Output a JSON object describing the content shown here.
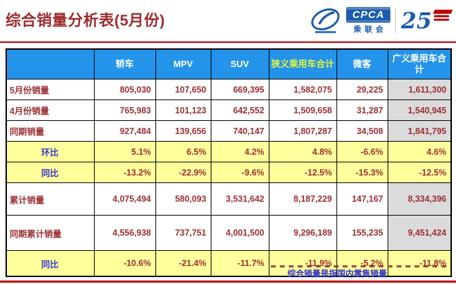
{
  "page": {
    "title": "综合销量分析表(5月份)",
    "footnote": "综合销量是指国内零售销量"
  },
  "logo": {
    "org_abbr": "CPCA",
    "org_name": "乘联会",
    "anniversary": "25"
  },
  "chart_data": {
    "type": "table",
    "columns": [
      "",
      "轿车",
      "MPV",
      "SUV",
      "狭义乘用车合计",
      "微客",
      "广义乘用车合计"
    ],
    "rows": [
      {
        "label": "5月份销量",
        "kind": "data",
        "values": [
          "805,030",
          "107,650",
          "669,395",
          "1,582,075",
          "29,225",
          "1,611,300"
        ]
      },
      {
        "label": "4月份销量",
        "kind": "data",
        "values": [
          "765,983",
          "101,123",
          "642,552",
          "1,509,658",
          "31,287",
          "1,540,945"
        ]
      },
      {
        "label": "同期销量",
        "kind": "data",
        "values": [
          "927,484",
          "139,656",
          "740,147",
          "1,807,287",
          "34,508",
          "1,841,795"
        ]
      },
      {
        "label": "环比",
        "kind": "ratio",
        "values": [
          "5.1%",
          "6.5%",
          "4.2%",
          "4.8%",
          "-6.6%",
          "4.6%"
        ]
      },
      {
        "label": "同比",
        "kind": "ratio",
        "values": [
          "-13.2%",
          "-22.9%",
          "-9.6%",
          "-12.5%",
          "-15.3%",
          "-12.5%"
        ]
      },
      {
        "label": "累计销量",
        "kind": "data",
        "values": [
          "4,075,494",
          "580,093",
          "3,531,642",
          "8,187,229",
          "147,167",
          "8,334,396"
        ]
      },
      {
        "label": "同期累计销量",
        "kind": "data",
        "values": [
          "4,556,938",
          "737,751",
          "4,001,500",
          "9,296,189",
          "155,235",
          "9,451,424"
        ]
      },
      {
        "label": "同比",
        "kind": "ratio",
        "values": [
          "-10.6%",
          "-21.4%",
          "-11.7%",
          "-11.9%",
          "-5.2%",
          "-11.8%"
        ]
      }
    ]
  },
  "colors": {
    "title_red": "#9E2B2E",
    "accent_line": "#C00000",
    "brand_blue": "#1B5CAD",
    "header_bg": "#2494EA",
    "header_text": "#FFFFFF",
    "header_highlight": "#E3F53C",
    "ratio_bg": "#FFFF9C",
    "gray_col": "#DBDBDB",
    "value_red": "#9D2F33",
    "label_blue": "#3333CC"
  }
}
